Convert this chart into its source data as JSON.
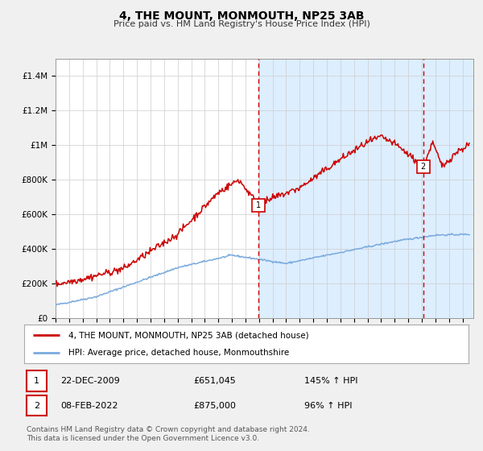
{
  "title": "4, THE MOUNT, MONMOUTH, NP25 3AB",
  "subtitle": "Price paid vs. HM Land Registry's House Price Index (HPI)",
  "ylabel_ticks": [
    "£0",
    "£200K",
    "£400K",
    "£600K",
    "£800K",
    "£1M",
    "£1.2M",
    "£1.4M"
  ],
  "ylabel_values": [
    0,
    200000,
    400000,
    600000,
    800000,
    1000000,
    1200000,
    1400000
  ],
  "ylim": [
    0,
    1500000
  ],
  "xlim_start": 1995.0,
  "xlim_end": 2025.8,
  "line1_color": "#cc0000",
  "line2_color": "#7aaadd",
  "marker1_date": 2009.97,
  "marker1_value": 651045,
  "marker2_date": 2022.1,
  "marker2_value": 875000,
  "legend_line1": "4, THE MOUNT, MONMOUTH, NP25 3AB (detached house)",
  "legend_line2": "HPI: Average price, detached house, Monmouthshire",
  "table_row1_num": "1",
  "table_row1_date": "22-DEC-2009",
  "table_row1_price": "£651,045",
  "table_row1_hpi": "145% ↑ HPI",
  "table_row2_num": "2",
  "table_row2_date": "08-FEB-2022",
  "table_row2_price": "£875,000",
  "table_row2_hpi": "96% ↑ HPI",
  "footer": "Contains HM Land Registry data © Crown copyright and database right 2024.\nThis data is licensed under the Open Government Licence v3.0.",
  "fig_bg_color": "#f0f0f0",
  "plot_bg_color": "#ffffff",
  "span_bg_color": "#ddeeff",
  "grid_color": "#cccccc",
  "vline_color": "#cc0000",
  "legend_border_color": "#aaaaaa",
  "num_box_color": "#cc0000",
  "title_fontsize": 10,
  "subtitle_fontsize": 8,
  "tick_fontsize": 7.5,
  "legend_fontsize": 7.5,
  "table_fontsize": 8,
  "footer_fontsize": 6.5
}
